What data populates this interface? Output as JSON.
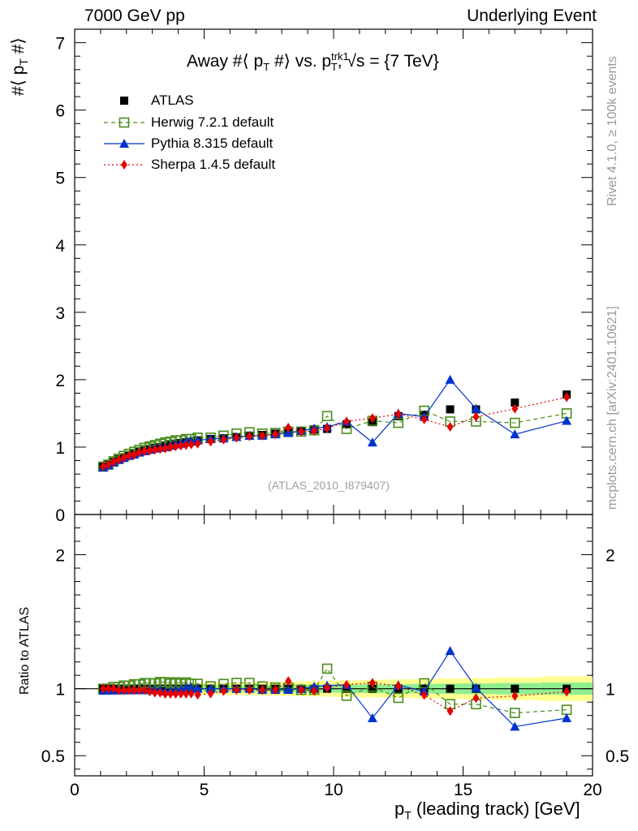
{
  "header": {
    "left": "7000 GeV pp",
    "right": "Underlying Event"
  },
  "title": {
    "prefix": "Away #⟨ p",
    "sub1": "T",
    "mid": " #⟩ vs. p",
    "sup": "trk1",
    "sub2": "T",
    "suffix": ", √s = {7 TeV}"
  },
  "side_labels": {
    "rivet": "Rivet 4.1.0, ≥ 100k events",
    "mcplots": "mcplots.cern.ch [arXiv:2401.10621]"
  },
  "analysis_ref": "(ATLAS_2010_I879407)",
  "axes": {
    "main_ylabel_prefix": "#⟨ p",
    "main_ylabel_sub": "T",
    "main_ylabel_suffix": " #⟩",
    "ratio_ylabel": "Ratio to ATLAS",
    "xlabel_p": "p",
    "xlabel_sub": "T",
    "xlabel_rest": " (leading track) [GeV]"
  },
  "chart_data": {
    "type": "scatter",
    "xlim": [
      0,
      20
    ],
    "main_ylim": [
      0,
      7.2
    ],
    "ratio_ylim": [
      0.35,
      2.3
    ],
    "x_ticks": [
      0,
      5,
      10,
      15,
      20
    ],
    "main_y_ticks": [
      0,
      1,
      2,
      3,
      4,
      5,
      6,
      7
    ],
    "ratio_y_ticks": [
      0.5,
      1,
      2
    ],
    "x": [
      1.1,
      1.3,
      1.5,
      1.7,
      1.9,
      2.1,
      2.3,
      2.5,
      2.7,
      2.9,
      3.1,
      3.3,
      3.5,
      3.7,
      3.9,
      4.1,
      4.3,
      4.5,
      4.75,
      5.25,
      5.75,
      6.25,
      6.75,
      7.25,
      7.75,
      8.25,
      8.75,
      9.25,
      9.75,
      10.5,
      11.5,
      12.5,
      13.5,
      14.5,
      15.5,
      17.0,
      19.0
    ],
    "series": [
      {
        "name": "ATLAS",
        "color": "#000000",
        "marker": "square",
        "values": [
          0.71,
          0.74,
          0.78,
          0.82,
          0.85,
          0.88,
          0.9,
          0.93,
          0.95,
          0.97,
          0.99,
          1.0,
          1.02,
          1.04,
          1.05,
          1.06,
          1.07,
          1.08,
          1.1,
          1.12,
          1.13,
          1.15,
          1.17,
          1.18,
          1.2,
          1.22,
          1.24,
          1.26,
          1.27,
          1.34,
          1.37,
          1.46,
          1.48,
          1.56,
          1.56,
          1.66,
          1.78
        ]
      },
      {
        "name": "Herwig 7.2.1 default",
        "color": "#4a8c1c",
        "marker": "open-square",
        "line": "dashed",
        "values": [
          0.71,
          0.74,
          0.79,
          0.83,
          0.87,
          0.9,
          0.93,
          0.96,
          0.99,
          1.01,
          1.03,
          1.05,
          1.07,
          1.08,
          1.1,
          1.1,
          1.12,
          1.12,
          1.14,
          1.14,
          1.17,
          1.2,
          1.22,
          1.2,
          1.21,
          1.23,
          1.23,
          1.25,
          1.46,
          1.27,
          1.39,
          1.36,
          1.54,
          1.38,
          1.38,
          1.36,
          1.5
        ]
      },
      {
        "name": "Pythia 8.315 default",
        "color": "#0033cc",
        "marker": "triangle",
        "line": "solid",
        "values": [
          0.7,
          0.73,
          0.77,
          0.81,
          0.84,
          0.87,
          0.89,
          0.92,
          0.94,
          0.96,
          0.98,
          0.99,
          1.0,
          1.02,
          1.04,
          1.05,
          1.08,
          1.09,
          1.1,
          1.12,
          1.13,
          1.15,
          1.17,
          1.17,
          1.19,
          1.21,
          1.24,
          1.28,
          1.3,
          1.38,
          1.07,
          1.5,
          1.45,
          2.0,
          1.57,
          1.19,
          1.39
        ]
      },
      {
        "name": "Sherpa 1.4.5 default",
        "color": "#e60000",
        "marker": "diamond",
        "line": "dotted",
        "values": [
          0.71,
          0.74,
          0.78,
          0.81,
          0.84,
          0.87,
          0.89,
          0.92,
          0.94,
          0.95,
          0.96,
          0.97,
          0.98,
          1.0,
          1.01,
          1.02,
          1.03,
          1.04,
          1.05,
          1.08,
          1.11,
          1.14,
          1.16,
          1.17,
          1.19,
          1.29,
          1.23,
          1.24,
          1.28,
          1.38,
          1.43,
          1.49,
          1.41,
          1.3,
          1.45,
          1.57,
          1.74
        ]
      }
    ]
  }
}
